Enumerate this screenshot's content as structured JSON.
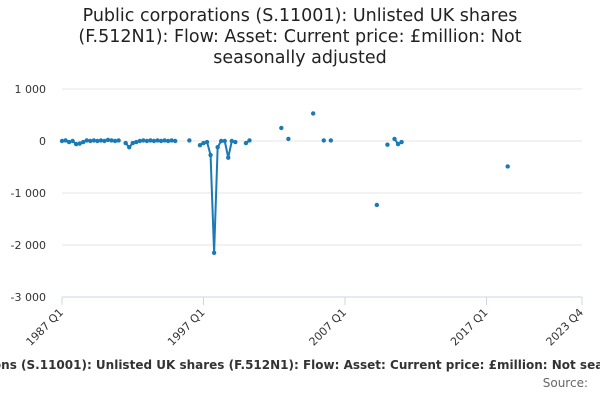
{
  "chart_data": {
    "type": "line",
    "title_lines": [
      "Public corporations (S.11001): Unlisted UK shares",
      "(F.512N1): Flow: Asset: Current price: £million: Not",
      "seasonally adjusted"
    ],
    "xlabel": "",
    "ylabel": "",
    "x_ticks": [
      "1987 Q1",
      "1997 Q1",
      "2007 Q1",
      "2017 Q1",
      "2023 Q4"
    ],
    "y_ticks": [
      "1 000",
      "0",
      "-1 000",
      "-2 000",
      "-3 000"
    ],
    "y_tick_values": [
      1000,
      0,
      -1000,
      -2000,
      -3000
    ],
    "ylim": [
      -3000,
      1000
    ],
    "xlim": [
      "1987 Q1",
      "2023 Q4"
    ],
    "grid": true,
    "legend_position": "bottom",
    "series": [
      {
        "name": "Public corporations (S.11001): Unlisted UK shares (F.512N1): Flow: Asset: Current price: £million: Not seasonally adjusted",
        "color": "#1a7ab5",
        "segments": [
          {
            "x": [
              "1987 Q1",
              "1987 Q2",
              "1987 Q3",
              "1987 Q4",
              "1988 Q1",
              "1988 Q2",
              "1988 Q3",
              "1988 Q4",
              "1989 Q1",
              "1989 Q2",
              "1989 Q3",
              "1989 Q4",
              "1990 Q1",
              "1990 Q2",
              "1990 Q3",
              "1990 Q4",
              "1991 Q1"
            ],
            "y": [
              0,
              10,
              -20,
              0,
              -60,
              -50,
              -20,
              10,
              0,
              10,
              0,
              10,
              0,
              20,
              10,
              0,
              10
            ]
          },
          {
            "x": [
              "1991 Q3",
              "1991 Q4",
              "1992 Q1",
              "1992 Q2",
              "1992 Q3",
              "1992 Q4",
              "1993 Q1",
              "1993 Q2",
              "1993 Q3",
              "1993 Q4",
              "1994 Q1",
              "1994 Q2",
              "1994 Q3",
              "1994 Q4",
              "1995 Q1"
            ],
            "y": [
              -40,
              -120,
              -40,
              -20,
              0,
              10,
              0,
              10,
              0,
              10,
              0,
              10,
              0,
              10,
              0
            ]
          },
          {
            "x": [
              "1996 Q1"
            ],
            "y": [
              10
            ]
          },
          {
            "x": [
              "1996 Q4",
              "1997 Q1",
              "1997 Q2",
              "1997 Q3",
              "1997 Q4",
              "1998 Q1",
              "1998 Q2",
              "1998 Q3",
              "1998 Q4",
              "1999 Q1",
              "1999 Q2"
            ],
            "y": [
              -80,
              -40,
              -20,
              -270,
              -2150,
              -120,
              0,
              0,
              -320,
              0,
              -20
            ]
          },
          {
            "x": [
              "2000 Q1",
              "2000 Q2"
            ],
            "y": [
              -40,
              10
            ]
          },
          {
            "x": [
              "2002 Q3"
            ],
            "y": [
              250
            ]
          },
          {
            "x": [
              "2003 Q1"
            ],
            "y": [
              40
            ]
          },
          {
            "x": [
              "2004 Q4"
            ],
            "y": [
              530
            ]
          },
          {
            "x": [
              "2005 Q3"
            ],
            "y": [
              10
            ]
          },
          {
            "x": [
              "2006 Q1"
            ],
            "y": [
              10
            ]
          },
          {
            "x": [
              "2009 Q2"
            ],
            "y": [
              -1230
            ]
          },
          {
            "x": [
              "2010 Q1"
            ],
            "y": [
              -70
            ]
          },
          {
            "x": [
              "2010 Q3",
              "2010 Q4",
              "2011 Q1"
            ],
            "y": [
              40,
              -60,
              -20
            ]
          },
          {
            "x": [
              "2018 Q3"
            ],
            "y": [
              -490
            ]
          }
        ]
      }
    ]
  },
  "source_label": "Source:"
}
